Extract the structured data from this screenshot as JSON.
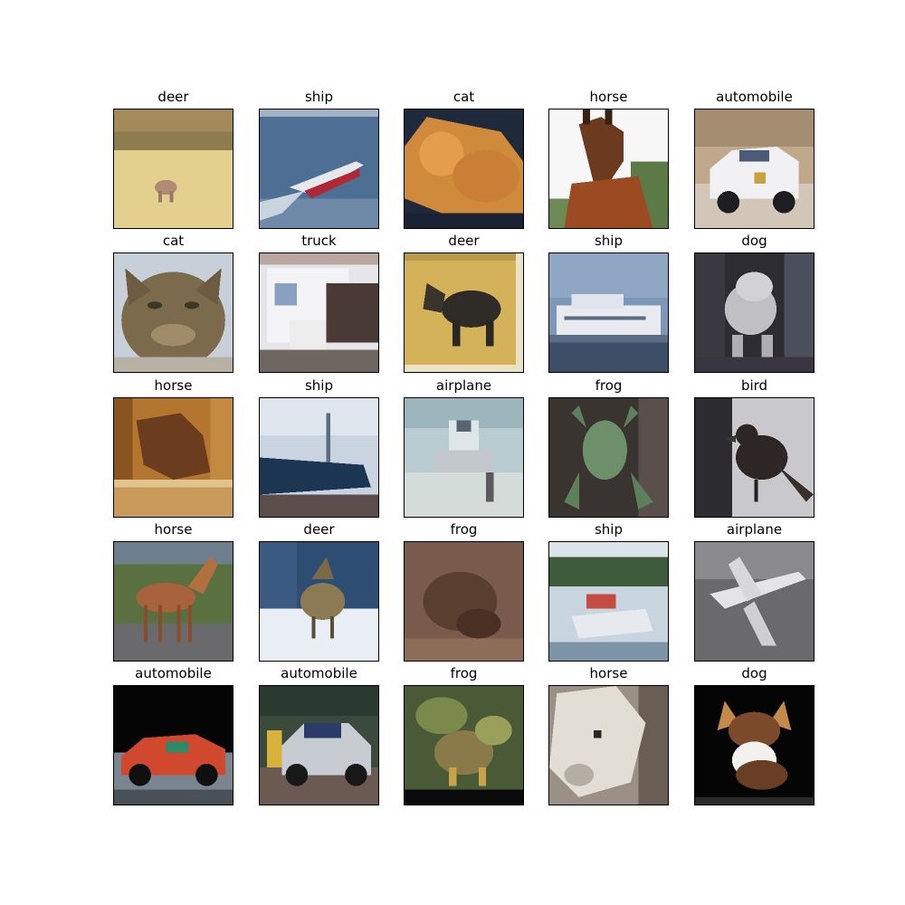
{
  "grid": {
    "images": [
      {
        "label": "deer",
        "scene": "deer",
        "icon": "deer-image"
      },
      {
        "label": "ship",
        "scene": "ship-boat",
        "icon": "ship-image"
      },
      {
        "label": "cat",
        "scene": "cat-lying",
        "icon": "cat-image"
      },
      {
        "label": "horse",
        "scene": "horse-head",
        "icon": "horse-image"
      },
      {
        "label": "automobile",
        "scene": "car-police",
        "icon": "automobile-image"
      },
      {
        "label": "cat",
        "scene": "cat-face",
        "icon": "cat-image"
      },
      {
        "label": "truck",
        "scene": "truck",
        "icon": "truck-image"
      },
      {
        "label": "deer",
        "scene": "moose",
        "icon": "deer-image"
      },
      {
        "label": "ship",
        "scene": "ship-ferry",
        "icon": "ship-image"
      },
      {
        "label": "dog",
        "scene": "dog-grey",
        "icon": "dog-image"
      },
      {
        "label": "horse",
        "scene": "horse-stall",
        "icon": "horse-image"
      },
      {
        "label": "ship",
        "scene": "ship-hull",
        "icon": "ship-image"
      },
      {
        "label": "airplane",
        "scene": "plane-front",
        "icon": "airplane-image"
      },
      {
        "label": "frog",
        "scene": "frog-green",
        "icon": "frog-image"
      },
      {
        "label": "bird",
        "scene": "bird-dark",
        "icon": "bird-image"
      },
      {
        "label": "horse",
        "scene": "horse-full",
        "icon": "horse-image"
      },
      {
        "label": "deer",
        "scene": "deer-snow",
        "icon": "deer-image"
      },
      {
        "label": "frog",
        "scene": "frog-brown",
        "icon": "frog-image"
      },
      {
        "label": "ship",
        "scene": "ship-lake",
        "icon": "ship-image"
      },
      {
        "label": "airplane",
        "scene": "plane-grey",
        "icon": "airplane-image"
      },
      {
        "label": "automobile",
        "scene": "car-race",
        "icon": "automobile-image"
      },
      {
        "label": "automobile",
        "scene": "car-silver",
        "icon": "automobile-image"
      },
      {
        "label": "frog",
        "scene": "frog-leaf",
        "icon": "frog-image"
      },
      {
        "label": "horse",
        "scene": "horse-white",
        "icon": "horse-image"
      },
      {
        "label": "dog",
        "scene": "dog-chihuahua",
        "icon": "dog-image"
      }
    ]
  }
}
